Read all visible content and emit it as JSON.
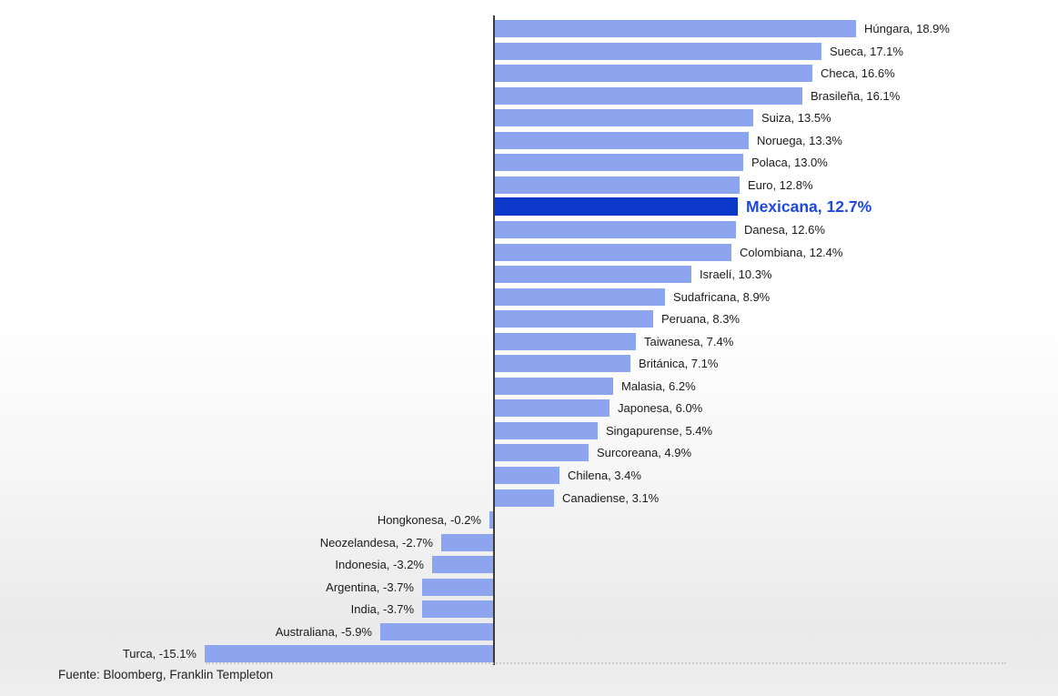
{
  "page": {
    "background_top": "#ffffff",
    "background_bottom": "#ececec"
  },
  "chart_data": {
    "type": "bar",
    "orientation": "horizontal",
    "title": "",
    "xlabel": "",
    "ylabel": "",
    "unit": "%",
    "xlim": [
      -16,
      20
    ],
    "grid": false,
    "legend": false,
    "axis_color": "#3b3b3b",
    "bar_color": "#8CA5EE",
    "highlight_bar_color": "#0B38C9",
    "highlight_label_color": "#1E48DB",
    "label_color": "#1a1a1a",
    "bars": [
      {
        "name": "Húngara",
        "value": 18.9,
        "display": "Húngara, 18.9%",
        "highlight": false
      },
      {
        "name": "Sueca",
        "value": 17.1,
        "display": "Sueca, 17.1%",
        "highlight": false
      },
      {
        "name": "Checa",
        "value": 16.6,
        "display": "Checa, 16.6%",
        "highlight": false
      },
      {
        "name": "Brasileña",
        "value": 16.1,
        "display": "Brasileña, 16.1%",
        "highlight": false
      },
      {
        "name": "Suiza",
        "value": 13.5,
        "display": "Suiza, 13.5%",
        "highlight": false
      },
      {
        "name": "Noruega",
        "value": 13.3,
        "display": "Noruega, 13.3%",
        "highlight": false
      },
      {
        "name": "Polaca",
        "value": 13.0,
        "display": "Polaca, 13.0%",
        "highlight": false
      },
      {
        "name": "Euro",
        "value": 12.8,
        "display": "Euro, 12.8%",
        "highlight": false
      },
      {
        "name": "Mexicana",
        "value": 12.7,
        "display": "Mexicana, 12.7%",
        "highlight": true
      },
      {
        "name": "Danesa",
        "value": 12.6,
        "display": "Danesa, 12.6%",
        "highlight": false
      },
      {
        "name": "Colombiana",
        "value": 12.4,
        "display": "Colombiana, 12.4%",
        "highlight": false
      },
      {
        "name": "Israelí",
        "value": 10.3,
        "display": "Israelí, 10.3%",
        "highlight": false
      },
      {
        "name": "Sudafricana",
        "value": 8.9,
        "display": "Sudafricana, 8.9%",
        "highlight": false
      },
      {
        "name": "Peruana",
        "value": 8.3,
        "display": "Peruana, 8.3%",
        "highlight": false
      },
      {
        "name": "Taiwanesa",
        "value": 7.4,
        "display": "Taiwanesa, 7.4%",
        "highlight": false
      },
      {
        "name": "Británica",
        "value": 7.1,
        "display": "Británica, 7.1%",
        "highlight": false
      },
      {
        "name": "Malasia",
        "value": 6.2,
        "display": "Malasia, 6.2%",
        "highlight": false
      },
      {
        "name": "Japonesa",
        "value": 6.0,
        "display": "Japonesa, 6.0%",
        "highlight": false
      },
      {
        "name": "Singapurense",
        "value": 5.4,
        "display": "Singapurense, 5.4%",
        "highlight": false
      },
      {
        "name": "Surcoreana",
        "value": 4.9,
        "display": "Surcoreana, 4.9%",
        "highlight": false
      },
      {
        "name": "Chilena",
        "value": 3.4,
        "display": "Chilena, 3.4%",
        "highlight": false
      },
      {
        "name": "Canadiense",
        "value": 3.1,
        "display": "Canadiense, 3.1%",
        "highlight": false
      },
      {
        "name": "Hongkonesa",
        "value": -0.2,
        "display": "Hongkonesa, -0.2%",
        "highlight": false
      },
      {
        "name": "Neozelandesa",
        "value": -2.7,
        "display": "Neozelandesa, -2.7%",
        "highlight": false
      },
      {
        "name": "Indonesia",
        "value": -3.2,
        "display": "Indonesia, -3.2%",
        "highlight": false
      },
      {
        "name": "Argentina",
        "value": -3.7,
        "display": "Argentina, -3.7%",
        "highlight": false
      },
      {
        "name": "India",
        "value": -3.7,
        "display": "India, -3.7%",
        "highlight": false
      },
      {
        "name": "Australiana",
        "value": -5.9,
        "display": "Australiana, -5.9%",
        "highlight": false
      },
      {
        "name": "Turca",
        "value": -15.1,
        "display": "Turca, -15.1%",
        "highlight": false
      }
    ]
  },
  "footer": {
    "source": "Fuente: Bloomberg, Franklin Templeton"
  }
}
